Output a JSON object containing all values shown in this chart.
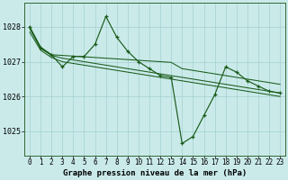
{
  "title": "Graphe pression niveau de la mer (hPa)",
  "bg_color": "#caeaea",
  "grid_color": "#aad4d4",
  "line_color": "#1a5c1a",
  "xlim": [
    -0.5,
    23.5
  ],
  "ylim": [
    1024.3,
    1028.7
  ],
  "yticks": [
    1025,
    1026,
    1027,
    1028
  ],
  "xticks": [
    0,
    1,
    2,
    3,
    4,
    5,
    6,
    7,
    8,
    9,
    10,
    11,
    12,
    13,
    14,
    15,
    16,
    17,
    18,
    19,
    20,
    21,
    22,
    23
  ],
  "main_series": [
    1028.0,
    1027.4,
    1027.2,
    1026.85,
    1027.15,
    1027.15,
    1027.5,
    1028.3,
    1027.7,
    1027.3,
    1027.0,
    1026.8,
    1026.6,
    1026.55,
    1024.65,
    1024.85,
    1025.45,
    1026.05,
    1026.85,
    1026.7,
    1026.45,
    1026.3,
    1026.15,
    1026.1
  ],
  "smooth1": [
    1028.0,
    1027.42,
    1027.2,
    1027.18,
    1027.16,
    1027.14,
    1027.12,
    1027.1,
    1027.08,
    1027.06,
    1027.04,
    1027.02,
    1027.0,
    1026.98,
    1026.8,
    1026.75,
    1026.7,
    1026.65,
    1026.6,
    1026.55,
    1026.5,
    1026.45,
    1026.4,
    1026.35
  ],
  "smooth2": [
    1027.95,
    1027.38,
    1027.18,
    1027.1,
    1027.05,
    1027.0,
    1026.95,
    1026.9,
    1026.85,
    1026.8,
    1026.75,
    1026.7,
    1026.65,
    1026.6,
    1026.55,
    1026.5,
    1026.45,
    1026.4,
    1026.35,
    1026.3,
    1026.25,
    1026.2,
    1026.15,
    1026.1
  ],
  "smooth3": [
    1027.85,
    1027.33,
    1027.12,
    1027.0,
    1026.95,
    1026.9,
    1026.85,
    1026.8,
    1026.75,
    1026.7,
    1026.65,
    1026.6,
    1026.55,
    1026.5,
    1026.45,
    1026.4,
    1026.35,
    1026.3,
    1026.25,
    1026.2,
    1026.15,
    1026.1,
    1026.05,
    1026.0
  ]
}
